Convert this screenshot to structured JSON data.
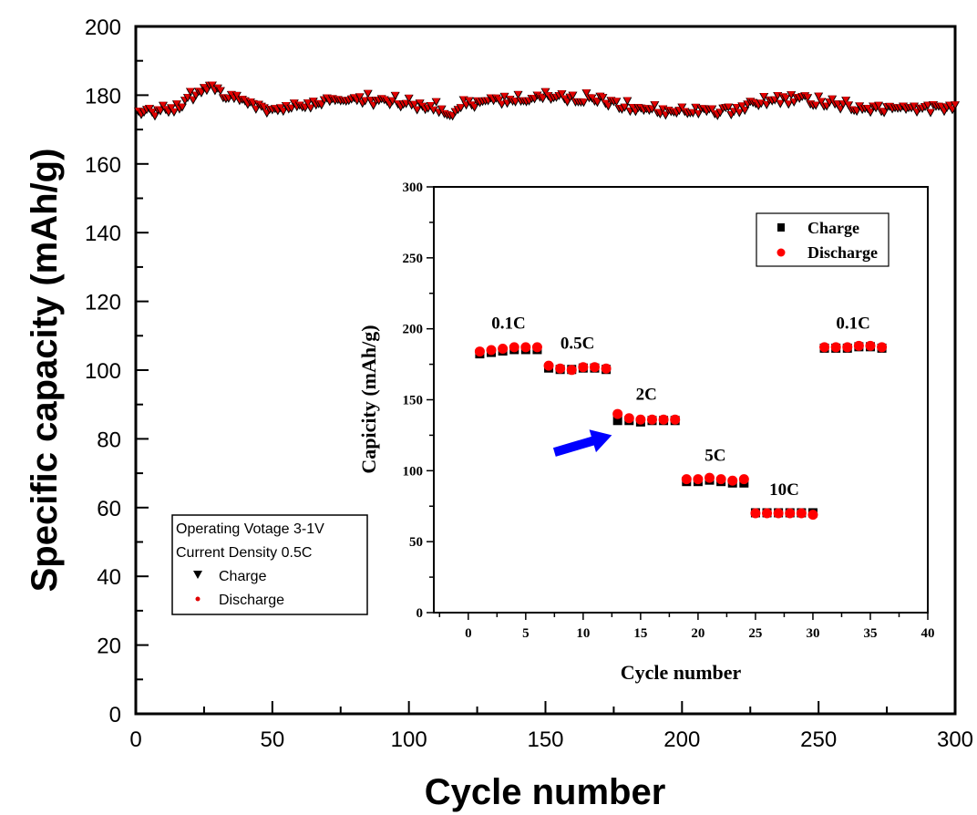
{
  "chart_data": [
    {
      "name": "main",
      "type": "scatter",
      "title": "",
      "xlabel": "Cycle number",
      "ylabel": "Specific capacity (mAh/g)",
      "xlim": [
        0,
        300
      ],
      "ylim": [
        0,
        200
      ],
      "xticks": [
        0,
        50,
        100,
        150,
        200,
        250,
        300
      ],
      "yticks": [
        0,
        20,
        40,
        60,
        80,
        100,
        120,
        140,
        160,
        180,
        200
      ],
      "grid": false,
      "legend": {
        "placement": "bottom-left",
        "header_lines": [
          "Operating Votage 3-1V",
          "Current Density 0.5C"
        ],
        "entries": [
          {
            "label": "Charge",
            "marker": "down-triangle",
            "color": "#000000"
          },
          {
            "label": "Discharge",
            "marker": "small-dot",
            "color": "#e00000"
          }
        ]
      },
      "series_profile_keypoints": {
        "x": [
          0,
          5,
          10,
          15,
          20,
          25,
          28,
          32,
          38,
          45,
          50,
          55,
          60,
          70,
          80,
          90,
          100,
          110,
          115,
          118,
          122,
          130,
          140,
          150,
          155,
          160,
          170,
          180,
          185,
          190,
          200,
          210,
          220,
          228,
          235,
          245,
          250,
          260,
          270,
          280,
          290,
          300
        ],
        "y": [
          175,
          174.5,
          175,
          176,
          179,
          181.5,
          182,
          180,
          178.5,
          176,
          175.5,
          176,
          177,
          178,
          178.5,
          178,
          177,
          176,
          174,
          175,
          177.5,
          178,
          178.5,
          179,
          179.5,
          179,
          178.5,
          176,
          175.5,
          175.5,
          175,
          175,
          175.5,
          177,
          178.5,
          178.5,
          177.5,
          176.5,
          176,
          176,
          176,
          176
        ]
      },
      "series": [
        {
          "name": "Charge",
          "marker": "down-triangle",
          "color": "#000000",
          "note": "300 points following series_profile_keypoints with ~±1.5 scatter"
        },
        {
          "name": "Discharge",
          "marker": "small-dot",
          "color": "#e00000",
          "note": "overlaps Charge series"
        }
      ]
    },
    {
      "name": "inset",
      "type": "scatter",
      "title": "",
      "xlabel": "Cycle number",
      "ylabel": "Capicity (mAh/g)",
      "xlim": [
        -3,
        40
      ],
      "ylim": [
        0,
        300
      ],
      "xticks": [
        0,
        5,
        10,
        15,
        20,
        25,
        30,
        35,
        40
      ],
      "yticks": [
        0,
        50,
        100,
        150,
        200,
        250,
        300
      ],
      "grid": false,
      "legend": {
        "placement": "top-right",
        "entries": [
          {
            "label": "Charge",
            "marker": "square",
            "color": "#000000"
          },
          {
            "label": "Discharge",
            "marker": "circle",
            "color": "#ff0000"
          }
        ]
      },
      "x": [
        1,
        2,
        3,
        4,
        5,
        6,
        7,
        8,
        9,
        10,
        11,
        12,
        13,
        14,
        15,
        16,
        17,
        18,
        19,
        20,
        21,
        22,
        23,
        24,
        25,
        26,
        27,
        28,
        29,
        30,
        31,
        32,
        33,
        34,
        35,
        36
      ],
      "series": [
        {
          "name": "Charge",
          "values": [
            183,
            184,
            185,
            186,
            186,
            186,
            173,
            172,
            172,
            173,
            173,
            172,
            136,
            136,
            135,
            136,
            136,
            136,
            93,
            93,
            94,
            93,
            92,
            92,
            71,
            71,
            71,
            71,
            71,
            71,
            187,
            187,
            187,
            188,
            188,
            187
          ]
        },
        {
          "name": "Discharge",
          "values": [
            184,
            185,
            186,
            187,
            187,
            187,
            174,
            172,
            171,
            173,
            173,
            172,
            140,
            137,
            136,
            136,
            136,
            136,
            94,
            94,
            95,
            94,
            93,
            94,
            70,
            70,
            70,
            70,
            70,
            69,
            187,
            187,
            187,
            188,
            188,
            187
          ]
        }
      ],
      "annotations": [
        {
          "text": "0.1C",
          "x": 3.5,
          "y": 200
        },
        {
          "text": "0.5C",
          "x": 9.5,
          "y": 186
        },
        {
          "text": "2C",
          "x": 15.5,
          "y": 150
        },
        {
          "text": "5C",
          "x": 21.5,
          "y": 107
        },
        {
          "text": "10C",
          "x": 27.5,
          "y": 83
        },
        {
          "text": "0.1C",
          "x": 33.5,
          "y": 200
        }
      ],
      "arrow": {
        "from": [
          7.5,
          113
        ],
        "to": [
          12.5,
          125
        ],
        "color": "#0000ff"
      }
    }
  ]
}
